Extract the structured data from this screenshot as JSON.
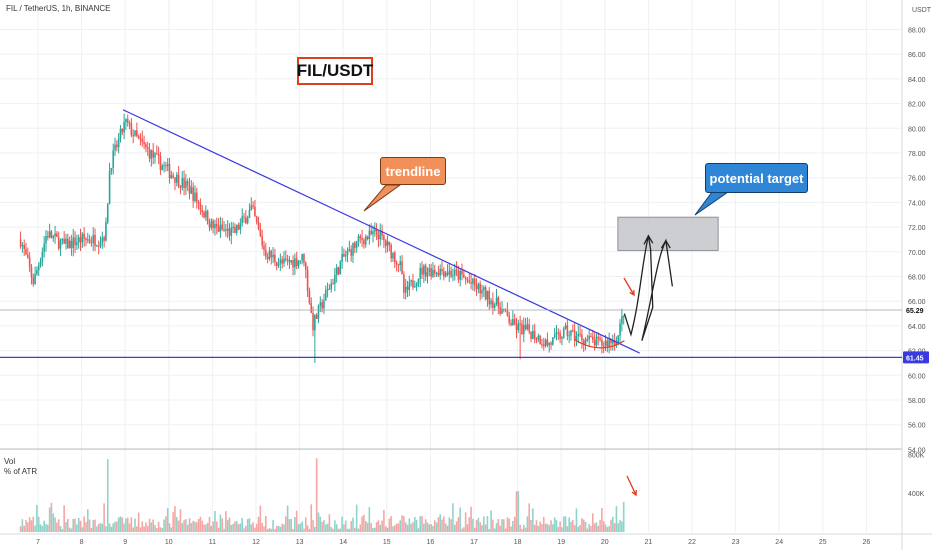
{
  "header": {
    "title": "FIL / TetherUS, 1h, BINANCE"
  },
  "volume_pane": {
    "label": "Vol",
    "sublabel": "% of ATR"
  },
  "annotations": {
    "pair": "FIL/USDT",
    "trendline": "trendline",
    "target": "potential target"
  },
  "price_labels": {
    "current": "65.29",
    "support": "61.45"
  },
  "colors": {
    "up": "#26a69a",
    "down": "#ef5350",
    "trendline": "#3a3ae0",
    "support": "#3a3ae0",
    "arrow": "#e03a1e"
  },
  "chart_data": {
    "type": "candlestick",
    "symbol": "FIL / TetherUS",
    "timeframe": "1h",
    "exchange": "BINANCE",
    "y_axis": {
      "unit": "USDT",
      "ticks": [
        "88.00",
        "86.00",
        "84.00",
        "82.00",
        "80.00",
        "78.00",
        "76.00",
        "74.00",
        "72.00",
        "70.00",
        "68.00",
        "66.00",
        "64.00",
        "62.00",
        "60.00",
        "58.00",
        "56.00",
        "54.00"
      ],
      "range": [
        53.5,
        89
      ]
    },
    "x_axis": {
      "ticks": [
        "7",
        "8",
        "9",
        "10",
        "11",
        "12",
        "13",
        "14",
        "15",
        "16",
        "17",
        "18",
        "19",
        "20",
        "21",
        "22",
        "23",
        "24",
        "25",
        "26"
      ]
    },
    "volume_axis": {
      "ticks": [
        "800K",
        "400K"
      ]
    },
    "price_path": [
      {
        "day": 6.6,
        "price": 71
      },
      {
        "day": 6.9,
        "price": 67.5
      },
      {
        "day": 7.2,
        "price": 71.5
      },
      {
        "day": 7.6,
        "price": 70.5
      },
      {
        "day": 8.0,
        "price": 71
      },
      {
        "day": 8.4,
        "price": 71
      },
      {
        "day": 8.55,
        "price": 71.5
      },
      {
        "day": 8.65,
        "price": 77
      },
      {
        "day": 9.0,
        "price": 80.5
      },
      {
        "day": 9.3,
        "price": 79
      },
      {
        "day": 9.7,
        "price": 77.5
      },
      {
        "day": 10.0,
        "price": 76.5
      },
      {
        "day": 10.5,
        "price": 75
      },
      {
        "day": 11.0,
        "price": 72
      },
      {
        "day": 11.5,
        "price": 71.5
      },
      {
        "day": 11.9,
        "price": 73.5
      },
      {
        "day": 12.2,
        "price": 70
      },
      {
        "day": 12.6,
        "price": 69
      },
      {
        "day": 13.1,
        "price": 69.5
      },
      {
        "day": 13.3,
        "price": 64
      },
      {
        "day": 13.6,
        "price": 66.5
      },
      {
        "day": 14.0,
        "price": 69.5
      },
      {
        "day": 14.4,
        "price": 71
      },
      {
        "day": 14.8,
        "price": 71.5
      },
      {
        "day": 15.3,
        "price": 69
      },
      {
        "day": 15.4,
        "price": 66.5
      },
      {
        "day": 15.8,
        "price": 68.5
      },
      {
        "day": 16.3,
        "price": 68.5
      },
      {
        "day": 16.7,
        "price": 68
      },
      {
        "day": 17.1,
        "price": 67
      },
      {
        "day": 17.6,
        "price": 65.5
      },
      {
        "day": 17.9,
        "price": 64
      },
      {
        "day": 18.3,
        "price": 63.5
      },
      {
        "day": 18.7,
        "price": 62.5
      },
      {
        "day": 19.1,
        "price": 63.5
      },
      {
        "day": 19.5,
        "price": 63
      },
      {
        "day": 19.9,
        "price": 62.5
      },
      {
        "day": 20.3,
        "price": 63
      },
      {
        "day": 20.45,
        "price": 65.5
      }
    ],
    "spikes": [
      {
        "day": 13.35,
        "low": 61
      },
      {
        "day": 18.05,
        "low": 61.3
      },
      {
        "day": 20.5,
        "high": 66.8
      }
    ],
    "volume_spikes": [
      {
        "day": 8.6,
        "value": 750
      },
      {
        "day": 13.4,
        "value": 760
      },
      {
        "day": 18.0,
        "value": 420
      },
      {
        "day": 20.45,
        "value": 310
      }
    ],
    "trendline": {
      "from": {
        "day": 8.95,
        "price": 81.5
      },
      "to": {
        "day": 20.8,
        "price": 61.8
      }
    },
    "support": {
      "price": 61.45
    },
    "current_price": 65.29,
    "target_zone": {
      "from_day": 20.3,
      "to_day": 22.6,
      "low": 70.1,
      "high": 72.8
    }
  }
}
